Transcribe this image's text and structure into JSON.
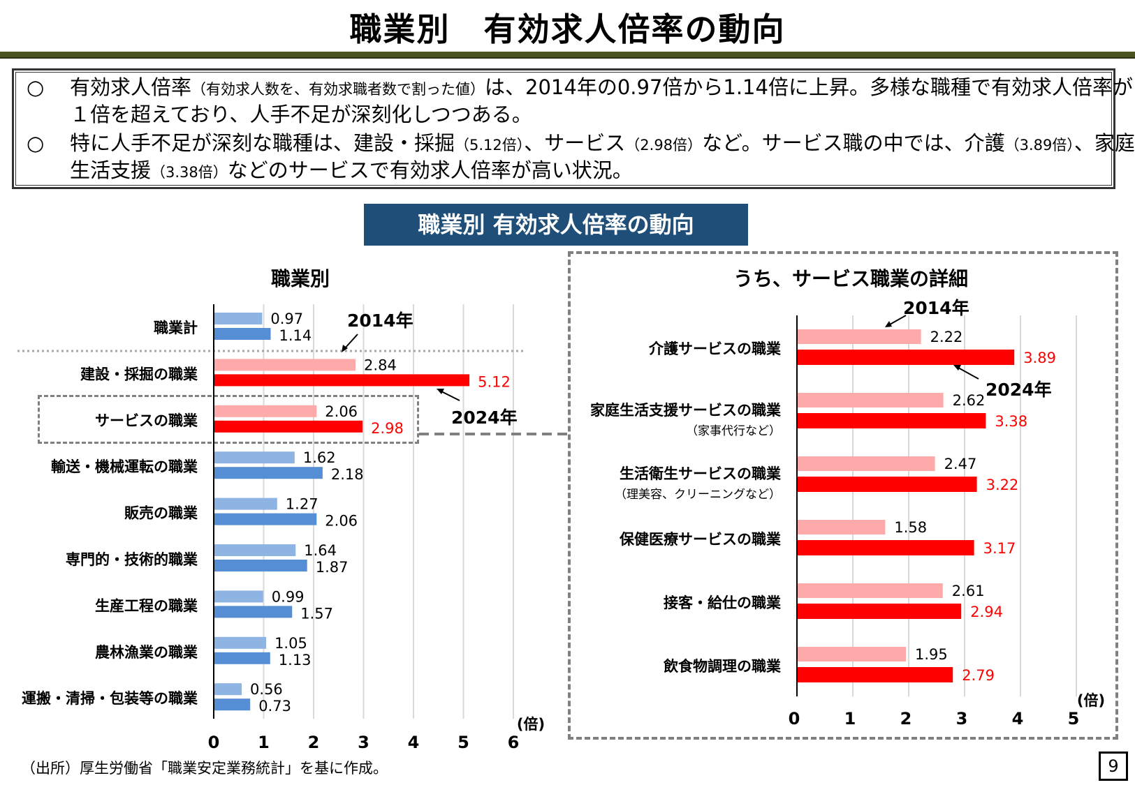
{
  "page_title": "職業別　有効求人倍率の動向",
  "summary": {
    "bullet1_mark": "○",
    "bullet1_a": "有効求人倍率",
    "bullet1_small": "（有効求人数を、有効求職者数で割った値）",
    "bullet1_b": "は、2014年の0.97倍から1.14倍に上昇。多様な職種で有効求人倍率が１倍を超えており、人手不足が深刻化しつつある。",
    "bullet2_mark": "○",
    "bullet2_a": "特に人手不足が深刻な職種は、建設・採掘",
    "bullet2_s1": "（5.12倍）",
    "bullet2_b": "、サービス",
    "bullet2_s2": "（2.98倍）",
    "bullet2_c": "など。サービス職の中では、介護",
    "bullet2_s3": "（3.89倍）",
    "bullet2_d": "、家庭生活支援",
    "bullet2_s4": "（3.38倍）",
    "bullet2_e": "などのサービスで有効求人倍率が高い状況。"
  },
  "banner": "職業別 有効求人倍率の動向",
  "colors": {
    "left_2014_normal": "#8eb4e3",
    "left_2024_normal": "#558ed5",
    "left_2014_hi": "#ffaaaa",
    "left_2024_hi": "#ff0000",
    "hi_label": "#ff0000",
    "banner": "#1f4e79"
  },
  "chart_data": [
    {
      "type": "bar",
      "orientation": "horizontal",
      "title": "職業別",
      "categories": [
        "職業計",
        "建設・採掘の職業",
        "サービスの職業",
        "輸送・機械運転の職業",
        "販売の職業",
        "専門的・技術的職業",
        "生産工程の職業",
        "農林漁業の職業",
        "運搬・清掃・包装等の職業"
      ],
      "series": [
        {
          "name": "2014年",
          "values": [
            0.97,
            2.84,
            2.06,
            1.62,
            1.27,
            1.64,
            0.99,
            1.05,
            0.56
          ]
        },
        {
          "name": "2024年",
          "values": [
            1.14,
            5.12,
            2.98,
            2.18,
            2.06,
            1.87,
            1.57,
            1.13,
            0.73
          ]
        }
      ],
      "value_labels_2014": [
        "0.97",
        "2.84",
        "2.06",
        "1.62",
        "1.27",
        "1.64",
        "0.99",
        "1.05",
        "0.56"
      ],
      "value_labels_2024": [
        "1.14",
        "5.12",
        "2.98",
        "2.18",
        "2.06",
        "1.87",
        "1.57",
        "1.13",
        "0.73"
      ],
      "xlim": [
        0,
        6
      ],
      "ticks": [
        "0",
        "1",
        "2",
        "3",
        "4",
        "5",
        "6"
      ],
      "unit": "(倍)",
      "highlighted": [
        "建設・採掘の職業",
        "サービスの職業"
      ],
      "grid": true
    },
    {
      "type": "bar",
      "orientation": "horizontal",
      "title": "うち、サービス職業の詳細",
      "categories": [
        "介護サービスの職業",
        "家庭生活支援サービスの職業",
        "生活衛生サービスの職業",
        "保健医療サービスの職業",
        "接客・給仕の職業",
        "飲食物調理の職業"
      ],
      "category_notes": [
        "",
        "（家事代行など）",
        "（理美容、クリーニングなど）",
        "",
        "",
        ""
      ],
      "series": [
        {
          "name": "2014年",
          "values": [
            2.22,
            2.62,
            2.47,
            1.58,
            2.61,
            1.95
          ]
        },
        {
          "name": "2024年",
          "values": [
            3.89,
            3.38,
            3.22,
            3.17,
            2.94,
            2.79
          ]
        }
      ],
      "value_labels_2014": [
        "2.22",
        "2.62",
        "2.47",
        "1.58",
        "2.61",
        "1.95"
      ],
      "value_labels_2024": [
        "3.89",
        "3.38",
        "3.22",
        "3.17",
        "2.94",
        "2.79"
      ],
      "xlim": [
        0,
        5
      ],
      "ticks": [
        "0",
        "1",
        "2",
        "3",
        "4",
        "5"
      ],
      "unit": "(倍)",
      "grid": true
    }
  ],
  "source_note": "（出所）厚生労働省「職業安定業務統計」を基に作成。",
  "page_number": "9"
}
